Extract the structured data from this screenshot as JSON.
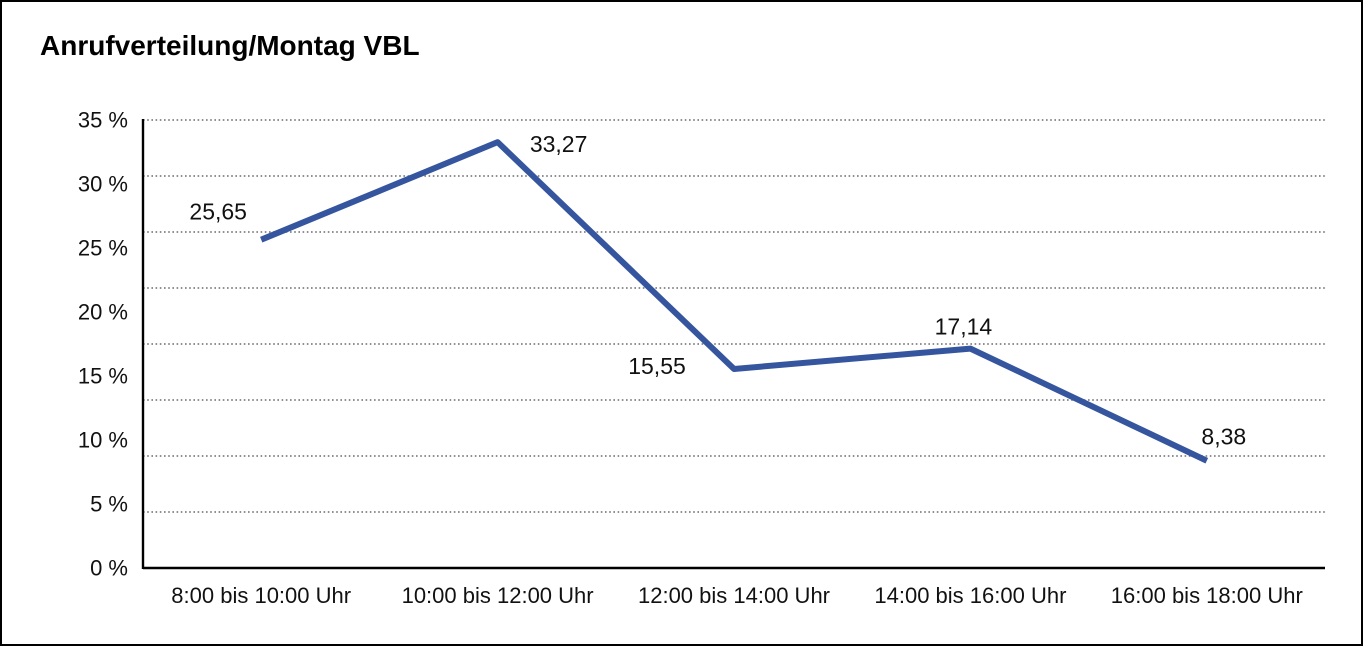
{
  "chart_data": {
    "type": "line",
    "title": "Anrufverteilung/Montag VBL",
    "categories": [
      "8:00 bis 10:00 Uhr",
      "10:00 bis 12:00 Uhr",
      "12:00 bis 14:00 Uhr",
      "14:00 bis 16:00 Uhr",
      "16:00 bis 18:00 Uhr"
    ],
    "values": [
      25.65,
      33.27,
      15.55,
      17.14,
      8.38
    ],
    "value_labels": [
      "25,65",
      "33,27",
      "15,55",
      "17,14",
      "8,38"
    ],
    "xlabel": "",
    "ylabel": "",
    "ylim": [
      0,
      35
    ],
    "ytick_step": 5,
    "ytick_labels": [
      "0 %",
      "5 %",
      "10 %",
      "15 %",
      "20 %",
      "25 %",
      "30 %",
      "35 %"
    ],
    "grid": "horizontal-dotted",
    "grid_intervals": 8,
    "legend": "none",
    "line_color": "#35569E",
    "axis_color": "#000000",
    "grid_color": "#6b6b6b",
    "text_color": "#111111"
  }
}
